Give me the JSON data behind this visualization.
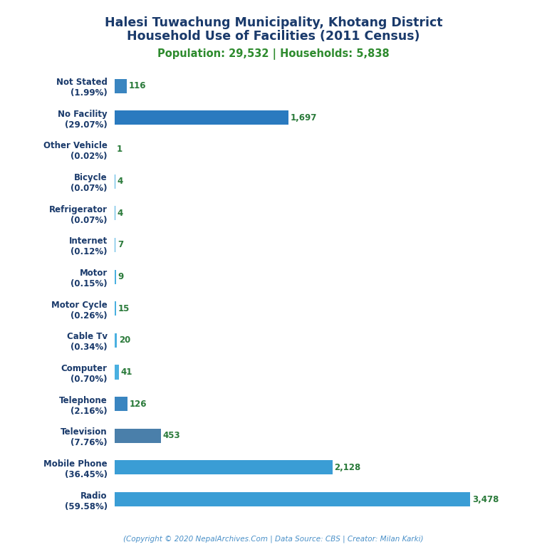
{
  "title_line1": "Halesi Tuwachung Municipality, Khotang District",
  "title_line2": "Household Use of Facilities (2011 Census)",
  "subtitle": "Population: 29,532 | Households: 5,838",
  "title_color": "#1a3a6b",
  "subtitle_color": "#2e8b2e",
  "footer": "(Copyright © 2020 NepalArchives.Com | Data Source: CBS | Creator: Milan Karki)",
  "footer_color": "#4a90c8",
  "categories": [
    "Not Stated\n(1.99%)",
    "No Facility\n(29.07%)",
    "Other Vehicle\n(0.02%)",
    "Bicycle\n(0.07%)",
    "Refrigerator\n(0.07%)",
    "Internet\n(0.12%)",
    "Motor\n(0.15%)",
    "Motor Cycle\n(0.26%)",
    "Cable Tv\n(0.34%)",
    "Computer\n(0.70%)",
    "Telephone\n(2.16%)",
    "Television\n(7.76%)",
    "Mobile Phone\n(36.45%)",
    "Radio\n(59.58%)"
  ],
  "values": [
    116,
    1697,
    1,
    4,
    4,
    7,
    9,
    15,
    20,
    41,
    126,
    453,
    2128,
    3478
  ],
  "bar_colors": [
    "#3a85c0",
    "#2a7abf",
    "#4ab0e0",
    "#4ab0e0",
    "#4ab0e0",
    "#4ab0e0",
    "#4ab0e0",
    "#4ab0e0",
    "#4ab0e0",
    "#4ab0e0",
    "#3a85c0",
    "#4a7faa",
    "#3a9dd5",
    "#3a9dd5"
  ],
  "value_color": "#2a7a3a",
  "label_color": "#1a3a6b",
  "background_color": "#ffffff",
  "xlim": [
    0,
    3800
  ],
  "bar_height": 0.45
}
